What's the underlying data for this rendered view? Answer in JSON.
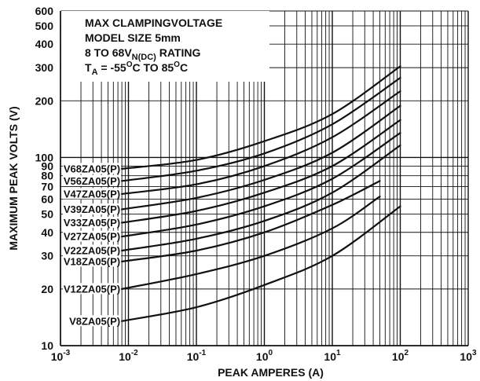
{
  "chart_data": {
    "type": "line",
    "title": "",
    "xlabel": "PEAK AMPERES (A)",
    "ylabel": "MAXIMUM PEAK VOLTS (V)",
    "xscale": "log",
    "yscale": "log",
    "xlim": [
      0.001,
      1000
    ],
    "ylim": [
      10,
      600
    ],
    "grid": true,
    "x_ticks": [
      0.001,
      0.01,
      0.1,
      1,
      10,
      100,
      1000
    ],
    "x_tick_labels": [
      {
        "base": "10",
        "exp": "-3"
      },
      {
        "base": "10",
        "exp": "-2"
      },
      {
        "base": "10",
        "exp": "-1"
      },
      {
        "base": "10",
        "exp": "0"
      },
      {
        "base": "10",
        "exp": "1"
      },
      {
        "base": "10",
        "exp": "2"
      },
      {
        "base": "10",
        "exp": "3"
      }
    ],
    "y_ticks": [
      10,
      20,
      30,
      40,
      50,
      60,
      70,
      80,
      90,
      100,
      200,
      300,
      400,
      500,
      600
    ],
    "y_tick_labels": [
      "10",
      "20",
      "30",
      "40",
      "50",
      "60",
      "70",
      "80",
      "90",
      "100",
      "200",
      "300",
      "400",
      "500",
      "600"
    ],
    "annotation": [
      {
        "text": "MAX CLAMPINGVOLTAGE"
      },
      {
        "text": "MODEL SIZE 5mm"
      },
      {
        "text": "8 TO 68V",
        "sub": "N(DC)",
        "tail": " RATING"
      },
      {
        "text": "T",
        "sub": "A",
        "tail": " = -55",
        "sup1": "O",
        "mid": "C TO 85",
        "sup2": "O",
        "end": "C"
      }
    ],
    "series": [
      {
        "name": "V68ZA05(P)",
        "x": [
          0.008,
          0.1,
          1,
          10,
          100
        ],
        "y": [
          87,
          97,
          122,
          170,
          305
        ]
      },
      {
        "name": "V56ZA05(P)",
        "x": [
          0.008,
          0.1,
          1,
          10,
          100
        ],
        "y": [
          75,
          85,
          105,
          150,
          265
        ]
      },
      {
        "name": "V47ZA05(P)",
        "x": [
          0.008,
          0.1,
          1,
          10,
          100
        ],
        "y": [
          64,
          72,
          90,
          128,
          225
        ]
      },
      {
        "name": "V39ZA05(P)",
        "x": [
          0.008,
          0.1,
          1,
          10,
          100
        ],
        "y": [
          53,
          61,
          76,
          106,
          188
        ]
      },
      {
        "name": "V33ZA05(P)",
        "x": [
          0.008,
          0.1,
          1,
          10,
          100
        ],
        "y": [
          45,
          52,
          65,
          90,
          158
        ]
      },
      {
        "name": "V27ZA05(P)",
        "x": [
          0.008,
          0.1,
          1,
          10,
          100
        ],
        "y": [
          38,
          44,
          55,
          77,
          135
        ]
      },
      {
        "name": "V22ZA05(P)",
        "x": [
          0.008,
          0.1,
          1,
          10,
          100
        ],
        "y": [
          32,
          37,
          46,
          65,
          116
        ]
      },
      {
        "name": "V18ZA05(P)",
        "x": [
          0.008,
          0.1,
          1,
          10,
          50
        ],
        "y": [
          28,
          32,
          40,
          56,
          75
        ]
      },
      {
        "name": "V12ZA05(P)",
        "x": [
          0.008,
          0.1,
          1,
          10,
          50
        ],
        "y": [
          20,
          24,
          30,
          42,
          62
        ]
      },
      {
        "name": "V8ZA05(P)",
        "x": [
          0.008,
          0.1,
          1,
          10,
          100
        ],
        "y": [
          13.5,
          16,
          21,
          30,
          55
        ]
      }
    ]
  }
}
